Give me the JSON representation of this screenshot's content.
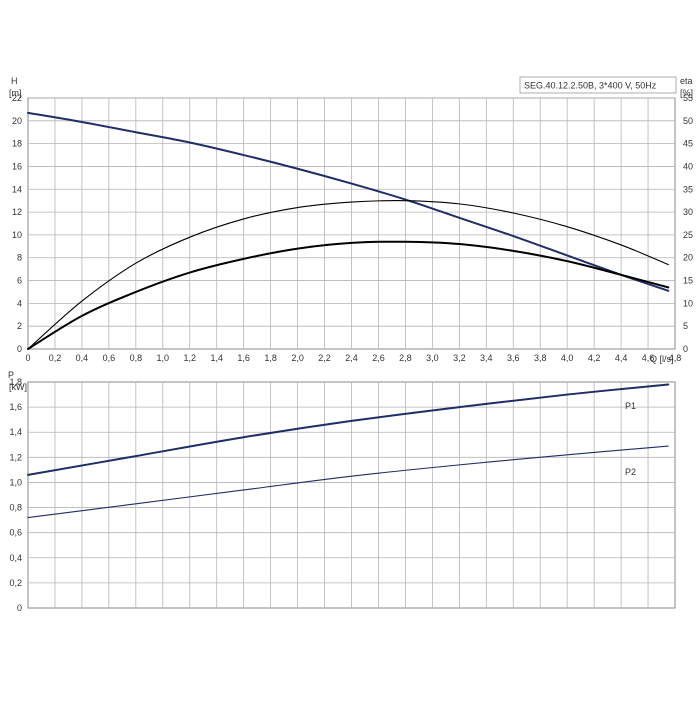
{
  "chart_data": [
    {
      "type": "line",
      "title": "SEG.40.12.2.50B, 3*400 V, 50Hz",
      "ylabel_top": "H",
      "ylabel_unit": "[m]",
      "y2label_top": "eta",
      "y2label_unit": "[%]",
      "xlabel": "Q [l/s]",
      "xlim": [
        0,
        4.8
      ],
      "ylim": [
        0,
        22
      ],
      "y2lim": [
        0,
        55
      ],
      "x_ticks": [
        "0",
        "0,2",
        "0,4",
        "0,6",
        "0,8",
        "1,0",
        "1,2",
        "1,4",
        "1,6",
        "1,8",
        "2,0",
        "2,2",
        "2,4",
        "2,6",
        "2,8",
        "3,0",
        "3,2",
        "3,4",
        "3,6",
        "3,8",
        "4,0",
        "4,2",
        "4,4",
        "4,6",
        "4,8"
      ],
      "y_ticks": [
        "0",
        "2",
        "4",
        "6",
        "8",
        "10",
        "12",
        "14",
        "16",
        "18",
        "20",
        "22"
      ],
      "y2_ticks": [
        "0",
        "5",
        "10",
        "15",
        "20",
        "25",
        "30",
        "35",
        "40",
        "45",
        "50",
        "55"
      ],
      "grid": true,
      "series": [
        {
          "axis": "left",
          "color": "#1e2e66",
          "x": [
            0,
            0.4,
            0.8,
            1.2,
            1.6,
            2.0,
            2.4,
            2.8,
            3.2,
            3.6,
            4.0,
            4.4,
            4.75
          ],
          "y": [
            20.7,
            19.9,
            19.0,
            18.1,
            17.0,
            15.8,
            14.5,
            13.1,
            11.5,
            9.9,
            8.2,
            6.5,
            5.1
          ]
        },
        {
          "axis": "right",
          "color": "#000000",
          "x": [
            0,
            0.4,
            0.8,
            1.2,
            1.6,
            2.0,
            2.4,
            2.8,
            3.2,
            3.6,
            4.0,
            4.4,
            4.75
          ],
          "y": [
            0,
            10.5,
            18.8,
            24.5,
            28.5,
            31.0,
            32.2,
            32.5,
            31.8,
            29.8,
            26.8,
            22.8,
            18.5
          ]
        },
        {
          "axis": "left",
          "color": "#000000",
          "x": [
            0,
            0.4,
            0.8,
            1.2,
            1.6,
            2.0,
            2.4,
            2.8,
            3.2,
            3.6,
            4.0,
            4.4,
            4.75
          ],
          "y": [
            0,
            2.9,
            5.0,
            6.7,
            7.9,
            8.8,
            9.3,
            9.4,
            9.2,
            8.6,
            7.7,
            6.5,
            5.4
          ]
        }
      ]
    },
    {
      "type": "line",
      "ylabel_top": "P",
      "ylabel_unit": "[kW]",
      "xlim": [
        0,
        4.8
      ],
      "ylim": [
        0,
        1.8
      ],
      "y_ticks": [
        "0",
        "0,2",
        "0,4",
        "0,6",
        "0,8",
        "1,0",
        "1,2",
        "1,4",
        "1,6",
        "1,8"
      ],
      "grid": true,
      "series": [
        {
          "name": "P1",
          "color": "#1e2e66",
          "x": [
            0,
            0.8,
            1.6,
            2.4,
            3.2,
            4.0,
            4.75
          ],
          "y": [
            1.06,
            1.21,
            1.36,
            1.49,
            1.6,
            1.7,
            1.78
          ]
        },
        {
          "name": "P2",
          "color": "#1e2e66",
          "x": [
            0,
            0.8,
            1.6,
            2.4,
            3.2,
            4.0,
            4.75
          ],
          "y": [
            0.72,
            0.83,
            0.94,
            1.05,
            1.14,
            1.22,
            1.29
          ]
        }
      ]
    }
  ]
}
